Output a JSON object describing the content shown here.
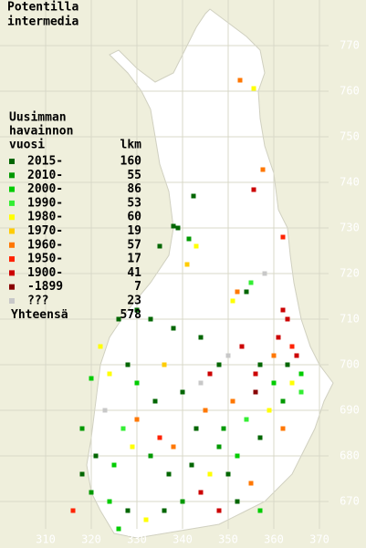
{
  "title": [
    "Potentilla",
    "intermedia"
  ],
  "legend": {
    "heading": [
      "Uusimman",
      "havainnon",
      "vuosi"
    ],
    "count_heading": "lkm",
    "rows": [
      {
        "label": "2015-",
        "count": "160",
        "color": "#006600"
      },
      {
        "label": "2010-",
        "count": "55",
        "color": "#009900"
      },
      {
        "label": "2000-",
        "count": "86",
        "color": "#00cc00"
      },
      {
        "label": "1990-",
        "count": "53",
        "color": "#33ee33"
      },
      {
        "label": "1980-",
        "count": "60",
        "color": "#ffff00"
      },
      {
        "label": "1970-",
        "count": "19",
        "color": "#ffcc00"
      },
      {
        "label": "1960-",
        "count": "57",
        "color": "#ff7700"
      },
      {
        "label": "1950-",
        "count": "17",
        "color": "#ff2200"
      },
      {
        "label": "1900-",
        "count": "41",
        "color": "#cc0000"
      },
      {
        "label": "-1899",
        "count": "7",
        "color": "#880000"
      },
      {
        "label": "???",
        "count": "23",
        "color": "#c8c8c8"
      }
    ],
    "total_label": "Yhteensä",
    "total": "578"
  },
  "x_ticks": [
    310,
    320,
    330,
    340,
    350,
    360,
    370
  ],
  "y_ticks": [
    670,
    680,
    690,
    700,
    710,
    720,
    730,
    740,
    750,
    760,
    770
  ],
  "cells": [
    [
      352.6,
      762.4,
      6
    ],
    [
      355.6,
      760.6,
      4
    ],
    [
      357.6,
      742.8,
      6
    ],
    [
      355.6,
      738.4,
      8
    ],
    [
      342.4,
      737,
      0
    ],
    [
      338,
      730.4,
      0
    ],
    [
      339,
      730,
      0
    ],
    [
      341.4,
      727.6,
      1
    ],
    [
      335,
      726,
      0
    ],
    [
      343,
      726,
      4
    ],
    [
      341,
      722,
      5
    ],
    [
      362,
      728,
      7
    ],
    [
      358,
      720,
      10
    ],
    [
      355,
      718,
      3
    ],
    [
      352,
      716,
      6
    ],
    [
      351,
      714,
      4
    ],
    [
      354,
      716,
      0
    ],
    [
      362,
      712,
      8
    ],
    [
      363,
      710,
      8
    ],
    [
      361,
      706,
      8
    ],
    [
      364,
      704,
      7
    ],
    [
      365,
      702,
      8
    ],
    [
      363,
      700,
      0
    ],
    [
      366,
      698,
      2
    ],
    [
      364,
      696,
      4
    ],
    [
      366,
      694,
      3
    ],
    [
      360,
      702,
      6
    ],
    [
      357,
      700,
      0
    ],
    [
      356,
      698,
      8
    ],
    [
      353,
      704,
      8
    ],
    [
      350,
      702,
      10
    ],
    [
      348,
      700,
      0
    ],
    [
      346,
      698,
      8
    ],
    [
      344,
      706,
      0
    ],
    [
      338,
      708,
      0
    ],
    [
      333,
      710,
      0
    ],
    [
      330,
      712,
      0
    ],
    [
      326,
      710,
      0
    ],
    [
      322,
      704,
      4
    ],
    [
      328,
      700,
      0
    ],
    [
      324,
      698,
      4
    ],
    [
      320,
      697,
      2
    ],
    [
      330,
      696,
      2
    ],
    [
      334,
      692,
      0
    ],
    [
      340,
      694,
      0
    ],
    [
      345,
      690,
      6
    ],
    [
      351,
      692,
      6
    ],
    [
      354,
      688,
      3
    ],
    [
      359,
      690,
      4
    ],
    [
      362,
      686,
      6
    ],
    [
      357,
      684,
      0
    ],
    [
      352,
      680,
      2
    ],
    [
      348,
      682,
      1
    ],
    [
      342,
      678,
      0
    ],
    [
      337,
      676,
      0
    ],
    [
      333,
      680,
      1
    ],
    [
      329,
      682,
      4
    ],
    [
      325,
      678,
      2
    ],
    [
      321,
      680,
      0
    ],
    [
      318,
      676,
      0
    ],
    [
      320,
      672,
      1
    ],
    [
      324,
      670,
      2
    ],
    [
      328,
      668,
      0
    ],
    [
      332,
      666,
      4
    ],
    [
      336,
      668,
      0
    ],
    [
      340,
      670,
      1
    ],
    [
      344,
      672,
      8
    ],
    [
      348,
      668,
      8
    ],
    [
      352,
      670,
      0
    ],
    [
      355,
      674,
      6
    ],
    [
      357,
      668,
      2
    ],
    [
      350,
      676,
      0
    ],
    [
      346,
      676,
      4
    ],
    [
      338,
      682,
      6
    ],
    [
      335,
      684,
      7
    ],
    [
      327,
      686,
      3
    ],
    [
      323,
      690,
      10
    ],
    [
      330,
      688,
      6
    ],
    [
      343,
      686,
      0
    ],
    [
      349,
      686,
      1
    ],
    [
      356,
      694,
      9
    ],
    [
      362,
      692,
      1
    ],
    [
      360,
      696,
      2
    ],
    [
      344,
      696,
      10
    ],
    [
      336,
      700,
      5
    ],
    [
      318,
      686,
      1
    ],
    [
      316,
      668,
      7
    ],
    [
      326,
      664,
      2
    ]
  ]
}
